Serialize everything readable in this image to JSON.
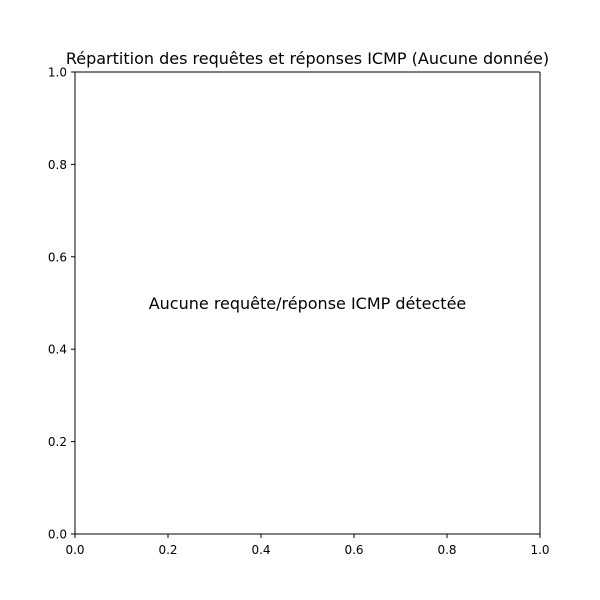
{
  "chart_data": {
    "type": "scatter",
    "title": "Répartition des requêtes et réponses ICMP (Aucune donnée)",
    "xlabel": "",
    "ylabel": "",
    "xlim": [
      0.0,
      1.0
    ],
    "ylim": [
      0.0,
      1.0
    ],
    "x_ticks": [
      "0.0",
      "0.2",
      "0.4",
      "0.6",
      "0.8",
      "1.0"
    ],
    "y_ticks": [
      "0.0",
      "0.2",
      "0.4",
      "0.6",
      "0.8",
      "1.0"
    ],
    "grid": false,
    "legend": false,
    "series": [],
    "annotations": [
      {
        "text": "Aucune requête/réponse ICMP détectée",
        "x": 0.5,
        "y": 0.5
      }
    ]
  }
}
